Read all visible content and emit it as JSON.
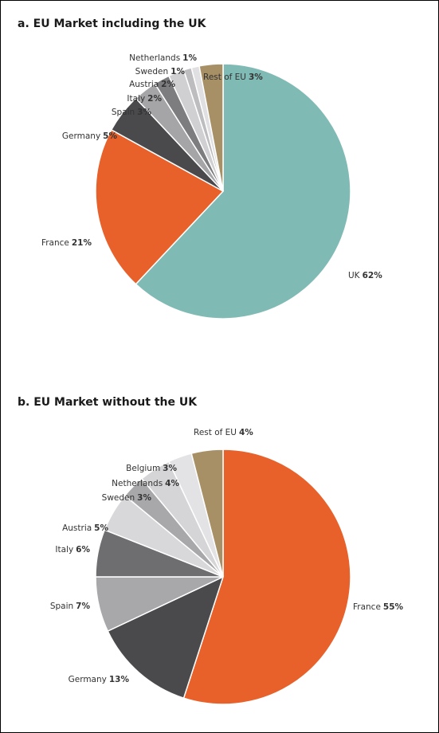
{
  "chart_data": [
    {
      "type": "pie",
      "title": "a. EU Market including the UK",
      "categories": [
        "UK",
        "France",
        "Germany",
        "Spain",
        "Italy",
        "Austria",
        "Sweden",
        "Netherlands",
        "Rest of EU"
      ],
      "values": [
        62,
        21,
        5,
        3,
        2,
        2,
        1,
        1,
        3
      ],
      "value_labels": [
        "62%",
        "21%",
        "5%",
        "3%",
        "2%",
        "2%",
        "1%",
        "1%",
        "3%"
      ],
      "colors": [
        "#80bab4",
        "#e8602a",
        "#4a4a4c",
        "#a5a5a7",
        "#7d7d80",
        "#d0d0d2",
        "#bdbdc0",
        "#e0e0e2",
        "#a89066"
      ]
    },
    {
      "type": "pie",
      "title": "b. EU Market without the UK",
      "categories": [
        "France",
        "Germany",
        "Spain",
        "Italy",
        "Austria",
        "Sweden",
        "Netherlands",
        "Belgium",
        "Rest of EU"
      ],
      "values": [
        55,
        13,
        7,
        6,
        5,
        3,
        4,
        3,
        4
      ],
      "value_labels": [
        "55%",
        "13%",
        "7%",
        "6%",
        "5%",
        "3%",
        "4%",
        "3%",
        "4%"
      ],
      "colors": [
        "#e8602a",
        "#4a4a4c",
        "#a8a8aa",
        "#6e6e70",
        "#d8d8da",
        "#a8a8aa",
        "#d5d5d7",
        "#e3e3e5",
        "#a89066"
      ]
    }
  ]
}
